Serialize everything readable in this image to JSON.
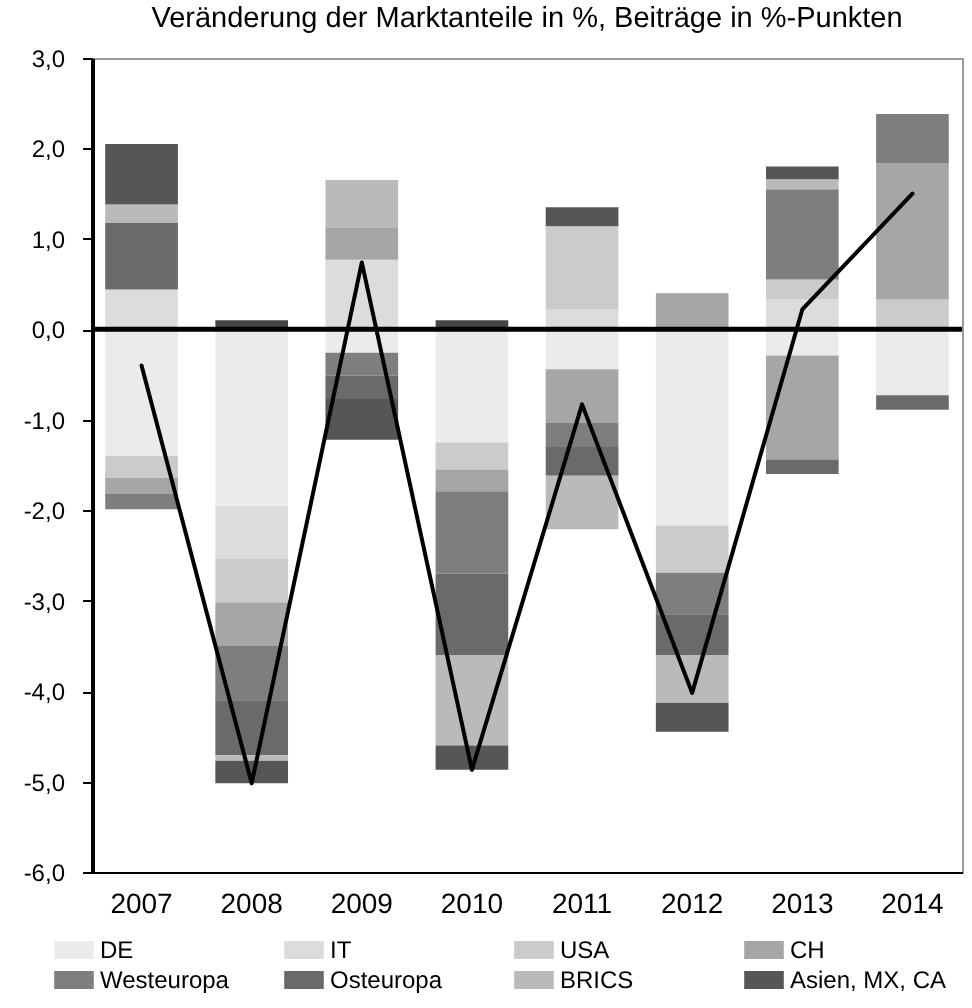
{
  "chart_data": {
    "type": "bar",
    "title": "Veränderung der Marktanteile in %, Beiträge in %-Punkten",
    "categories": [
      "2007",
      "2008",
      "2009",
      "2010",
      "2011",
      "2012",
      "2013",
      "2014"
    ],
    "stacked": true,
    "series": [
      {
        "name": "DE",
        "color": "#ebebeb",
        "values": [
          -1.4,
          -1.95,
          -0.26,
          -1.25,
          -0.44,
          -2.17,
          -0.29,
          -0.73
        ]
      },
      {
        "name": "IT",
        "color": "#dcdcdc",
        "values": [
          0.44,
          -0.59,
          0.77,
          null,
          0.22,
          null,
          0.33,
          null
        ]
      },
      {
        "name": "USA",
        "color": "#cbcbcb",
        "values": [
          -0.24,
          -0.48,
          null,
          -0.3,
          0.92,
          -0.52,
          0.22,
          0.33
        ]
      },
      {
        "name": "CH",
        "color": "#a6a6a6",
        "values": [
          -0.18,
          -0.48,
          0.36,
          -0.24,
          -0.59,
          0.4,
          -1.15,
          1.51
        ]
      },
      {
        "name": "Westeuropa",
        "color": "#7e7e7e",
        "values": [
          -0.17,
          -0.6,
          -0.25,
          -0.91,
          -0.27,
          -0.46,
          1.0,
          0.54
        ]
      },
      {
        "name": "Osteuropa",
        "color": "#6a6a6a",
        "values": [
          0.74,
          -0.61,
          -0.26,
          -0.9,
          -0.32,
          -0.45,
          -0.16,
          -0.16
        ]
      },
      {
        "name": "BRICS",
        "color": "#bababa",
        "values": [
          0.2,
          -0.06,
          0.52,
          -1.0,
          -0.59,
          -0.53,
          0.11,
          null
        ]
      },
      {
        "name": "Asien, MX, CA",
        "color": "#565656",
        "values": [
          0.67,
          -0.25,
          -0.45,
          -0.27,
          0.21,
          -0.32,
          0.14,
          null
        ]
      },
      {
        "color": "#464646",
        "values": [
          null,
          0.1,
          null,
          0.1,
          null,
          null,
          null,
          null
        ]
      },
      {
        "type": "line",
        "color": "#000000",
        "values": [
          -0.4,
          -5.02,
          0.74,
          -4.87,
          -0.83,
          -4.02,
          0.22,
          1.5
        ]
      }
    ],
    "ylim": [
      -6,
      3
    ],
    "yticks": [
      {
        "value": -6,
        "label": "-6,0"
      },
      {
        "value": -5,
        "label": "-5,0"
      },
      {
        "value": -4,
        "label": "-4,0"
      },
      {
        "value": -3,
        "label": "-3,0"
      },
      {
        "value": -2,
        "label": "-2,0"
      },
      {
        "value": -1,
        "label": "-1,0"
      },
      {
        "value": 0,
        "label": "0,0"
      },
      {
        "value": 1,
        "label": "1,0"
      },
      {
        "value": 2,
        "label": "2,0"
      },
      {
        "value": 3,
        "label": "3,0"
      }
    ],
    "ref_lines": [
      {
        "axis": "y",
        "value": 0,
        "color": "#000000"
      }
    ],
    "grid": false,
    "legend": "bottom"
  }
}
